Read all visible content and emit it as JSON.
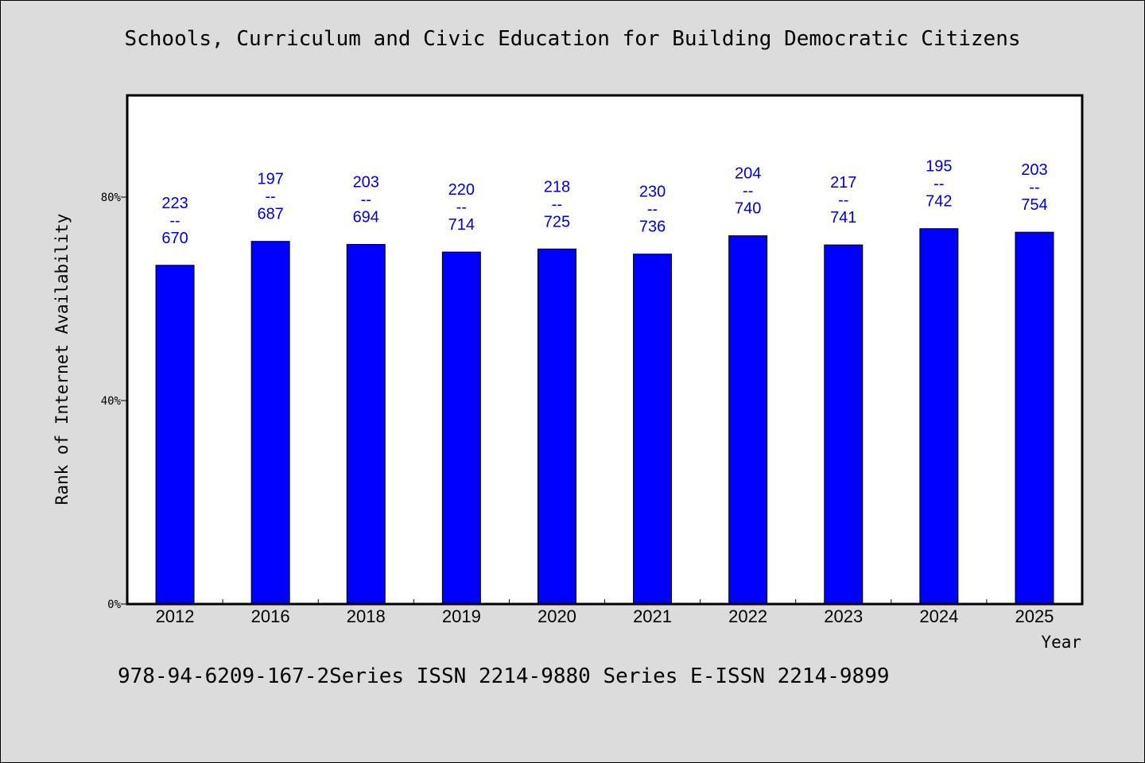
{
  "chart_data": {
    "type": "bar",
    "title": "Schools, Curriculum and Civic Education for Building Democratic Citizens",
    "xlabel": "Year",
    "ylabel": "Rank of Internet Availability",
    "categories": [
      "2012",
      "2016",
      "2018",
      "2019",
      "2020",
      "2021",
      "2022",
      "2023",
      "2024",
      "2025"
    ],
    "values": [
      66.6,
      71.3,
      70.7,
      69.2,
      69.8,
      68.8,
      72.4,
      70.6,
      73.8,
      73.1
    ],
    "labels": [
      {
        "top": "223",
        "sep": "--",
        "bottom": "670"
      },
      {
        "top": "197",
        "sep": "--",
        "bottom": "687"
      },
      {
        "top": "203",
        "sep": "--",
        "bottom": "694"
      },
      {
        "top": "220",
        "sep": "--",
        "bottom": "714"
      },
      {
        "top": "218",
        "sep": "--",
        "bottom": "725"
      },
      {
        "top": "230",
        "sep": "--",
        "bottom": "736"
      },
      {
        "top": "204",
        "sep": "--",
        "bottom": "740"
      },
      {
        "top": "217",
        "sep": "--",
        "bottom": "741"
      },
      {
        "top": "195",
        "sep": "--",
        "bottom": "742"
      },
      {
        "top": "203",
        "sep": "--",
        "bottom": "754"
      }
    ],
    "y_ticks": [
      "0%",
      "40%",
      "80%"
    ],
    "y_tick_values": [
      0,
      40,
      80
    ],
    "ylim": [
      0,
      100
    ],
    "grid": false,
    "bar_color": "#0000ff",
    "label_color": "#0000cc"
  },
  "footer": "978-94-6209-167-2Series ISSN 2214-9880 Series E-ISSN 2214-9899"
}
